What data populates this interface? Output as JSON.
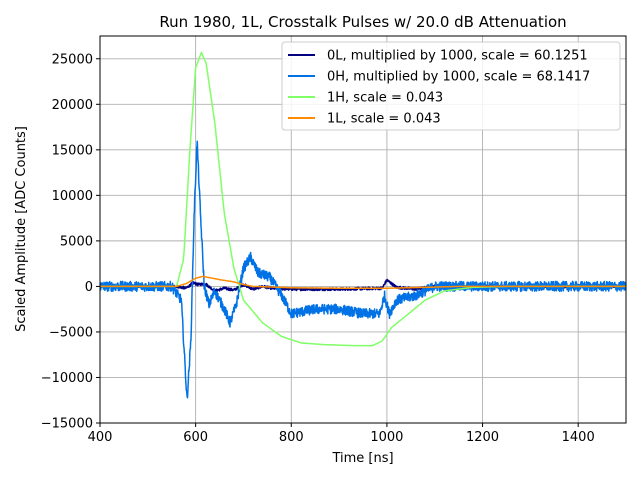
{
  "chart_data": {
    "type": "line",
    "title": "Run 1980, 1L, Crosstalk Pulses w/ 20.0 dB Attenuation",
    "xlabel": "Time [ns]",
    "ylabel": "Scaled Amplitude [ADC Counts]",
    "xlim": [
      400,
      1500
    ],
    "ylim": [
      -15000,
      27500
    ],
    "xticks": [
      400,
      600,
      800,
      1000,
      1200,
      1400
    ],
    "yticks": [
      -15000,
      -10000,
      -5000,
      0,
      5000,
      10000,
      15000,
      20000,
      25000
    ],
    "grid": true,
    "legend_position": "top-right",
    "series": [
      {
        "name": "0L, multiplied by 1000,  scale = 60.1251",
        "color": "#000080",
        "noise": 150,
        "points": [
          [
            400,
            0
          ],
          [
            560,
            0
          ],
          [
            580,
            -200
          ],
          [
            595,
            400
          ],
          [
            605,
            200
          ],
          [
            620,
            300
          ],
          [
            640,
            -500
          ],
          [
            660,
            -200
          ],
          [
            680,
            -400
          ],
          [
            700,
            200
          ],
          [
            720,
            -300
          ],
          [
            740,
            0
          ],
          [
            760,
            -200
          ],
          [
            800,
            -300
          ],
          [
            900,
            -300
          ],
          [
            990,
            -200
          ],
          [
            1000,
            700
          ],
          [
            1020,
            -100
          ],
          [
            1060,
            -300
          ],
          [
            1100,
            0
          ],
          [
            1500,
            0
          ]
        ]
      },
      {
        "name": "0H, multiplied by 1000,  scale = 68.1417",
        "color": "#0072e6",
        "noise": 550,
        "points": [
          [
            400,
            0
          ],
          [
            550,
            0
          ],
          [
            570,
            -1500
          ],
          [
            582,
            -12500
          ],
          [
            590,
            -6000
          ],
          [
            597,
            8000
          ],
          [
            603,
            16000
          ],
          [
            610,
            8000
          ],
          [
            618,
            0
          ],
          [
            628,
            -2000
          ],
          [
            640,
            -500
          ],
          [
            660,
            -2500
          ],
          [
            672,
            -4000
          ],
          [
            685,
            -2000
          ],
          [
            700,
            2000
          ],
          [
            715,
            3200
          ],
          [
            730,
            1500
          ],
          [
            755,
            1000
          ],
          [
            780,
            -1000
          ],
          [
            800,
            -3000
          ],
          [
            850,
            -2500
          ],
          [
            900,
            -2500
          ],
          [
            950,
            -3000
          ],
          [
            985,
            -3000
          ],
          [
            995,
            -1000
          ],
          [
            1005,
            -3000
          ],
          [
            1020,
            -1500
          ],
          [
            1060,
            -1000
          ],
          [
            1100,
            0
          ],
          [
            1200,
            0
          ],
          [
            1500,
            0
          ]
        ]
      },
      {
        "name": "1H,  scale = 0.043",
        "color": "#80ff66",
        "noise": 0,
        "points": [
          [
            400,
            0
          ],
          [
            560,
            0
          ],
          [
            575,
            3000
          ],
          [
            588,
            15000
          ],
          [
            600,
            24000
          ],
          [
            612,
            25700
          ],
          [
            622,
            24500
          ],
          [
            640,
            18000
          ],
          [
            660,
            8000
          ],
          [
            680,
            2000
          ],
          [
            700,
            -1500
          ],
          [
            740,
            -4000
          ],
          [
            780,
            -5500
          ],
          [
            820,
            -6200
          ],
          [
            870,
            -6400
          ],
          [
            930,
            -6500
          ],
          [
            970,
            -6500
          ],
          [
            990,
            -6000
          ],
          [
            1010,
            -4500
          ],
          [
            1050,
            -2800
          ],
          [
            1080,
            -1500
          ],
          [
            1120,
            -500
          ],
          [
            1180,
            -100
          ],
          [
            1250,
            0
          ],
          [
            1500,
            0
          ]
        ]
      },
      {
        "name": "1L,  scale = 0.043",
        "color": "#ff8c00",
        "noise": 0,
        "points": [
          [
            400,
            0
          ],
          [
            560,
            0
          ],
          [
            580,
            300
          ],
          [
            600,
            900
          ],
          [
            615,
            1100
          ],
          [
            635,
            900
          ],
          [
            655,
            700
          ],
          [
            680,
            500
          ],
          [
            700,
            200
          ],
          [
            720,
            0
          ],
          [
            750,
            -50
          ],
          [
            800,
            -150
          ],
          [
            900,
            -200
          ],
          [
            1000,
            -200
          ],
          [
            1080,
            -100
          ],
          [
            1150,
            0
          ],
          [
            1500,
            0
          ]
        ]
      }
    ]
  }
}
